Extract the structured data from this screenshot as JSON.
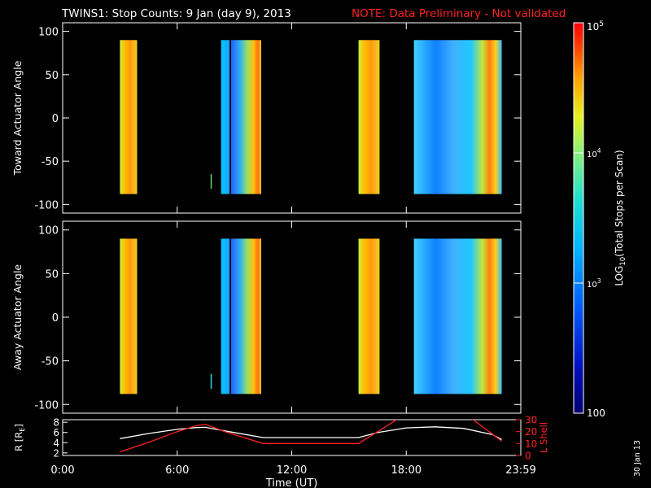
{
  "header": {
    "title": "TWINS1: Stop Counts:  9 Jan (day   9), 2013",
    "note": "NOTE: Data Preliminary - Not validated",
    "note_color": "#ff2020"
  },
  "footer_date": "30 Jan 13",
  "chart_data": [
    {
      "type": "heatmap",
      "ylabel": "Toward Actuator Angle",
      "ylim": [
        -110,
        110
      ],
      "yticks": [
        "100",
        "50",
        "0",
        "-50",
        "-100"
      ],
      "ytick_values": [
        100,
        50,
        0,
        -50,
        -100
      ],
      "xlim": [
        0,
        24
      ],
      "angle_range": [
        -88,
        90
      ],
      "blocks": [
        {
          "t0": 3.0,
          "t1": 3.9,
          "kind": "orange"
        },
        {
          "t0": 7.75,
          "t1": 7.8,
          "kind": "green-line"
        },
        {
          "t0": 8.3,
          "t1": 8.75,
          "kind": "cyan"
        },
        {
          "t0": 8.75,
          "t1": 8.82,
          "kind": "gap"
        },
        {
          "t0": 8.82,
          "t1": 10.4,
          "kind": "blue-to-orange"
        },
        {
          "t0": 15.5,
          "t1": 16.6,
          "kind": "orange"
        },
        {
          "t0": 18.4,
          "t1": 23.0,
          "kind": "cyan-to-red"
        }
      ]
    },
    {
      "type": "heatmap",
      "ylabel": "Away Actuator Angle",
      "ylim": [
        -110,
        110
      ],
      "yticks": [
        "100",
        "50",
        "0",
        "-50",
        "-100"
      ],
      "ytick_values": [
        100,
        50,
        0,
        -50,
        -100
      ],
      "xlim": [
        0,
        24
      ],
      "angle_range": [
        -88,
        90
      ],
      "blocks": [
        {
          "t0": 3.0,
          "t1": 3.9,
          "kind": "orange"
        },
        {
          "t0": 7.75,
          "t1": 7.8,
          "kind": "cyan-line"
        },
        {
          "t0": 8.3,
          "t1": 8.75,
          "kind": "cyan"
        },
        {
          "t0": 8.75,
          "t1": 8.82,
          "kind": "gap"
        },
        {
          "t0": 8.82,
          "t1": 10.4,
          "kind": "blue-to-orange"
        },
        {
          "t0": 15.5,
          "t1": 16.6,
          "kind": "orange"
        },
        {
          "t0": 18.4,
          "t1": 23.0,
          "kind": "cyan-to-red"
        }
      ]
    },
    {
      "type": "line",
      "ylabel_left": "R [R",
      "ylabel_left_sub": "E",
      "ylabel_left_end": "]",
      "ylabel_right": "L Shell",
      "left_ylim": [
        1.5,
        8.5
      ],
      "left_yticks": [
        "8",
        "6",
        "4",
        "2"
      ],
      "left_ytick_values": [
        8,
        6,
        4,
        2
      ],
      "right_ylim": [
        0,
        30
      ],
      "right_yticks": [
        "30",
        "20",
        "10",
        "0"
      ],
      "right_ytick_values": [
        30,
        20,
        10,
        0
      ],
      "series": [
        {
          "axis": "left",
          "color": "#ffffff",
          "x": [
            3.0,
            4.5,
            6.0,
            7.0,
            7.5,
            8.5,
            10.5,
            15.5,
            16.5,
            18.0,
            19.5,
            21.0,
            22.5,
            23.0
          ],
          "y": [
            4.8,
            5.8,
            6.6,
            6.95,
            7.0,
            6.3,
            5.0,
            5.0,
            6.0,
            6.9,
            7.1,
            6.8,
            5.6,
            4.6
          ]
        },
        {
          "axis": "right",
          "color": "#ff2020",
          "x": [
            3.0,
            4.5,
            6.0,
            7.0,
            7.5,
            8.5,
            10.5,
            15.5,
            16.5,
            17.5,
            18.0,
            21.0,
            21.5,
            23.0
          ],
          "y": [
            3,
            11,
            20,
            25,
            26,
            20,
            10,
            10,
            20,
            30,
            36,
            36,
            30,
            12
          ]
        }
      ]
    }
  ],
  "xaxis": {
    "label": "Time (UT)",
    "ticks": [
      "0:00",
      "6:00",
      "12:00",
      "18:00",
      "23:59"
    ],
    "tick_values": [
      0,
      6,
      12,
      18,
      24
    ]
  },
  "colorbar": {
    "label": "LOG10(Total Stops per Scan)",
    "label_pre": "LOG",
    "label_sub": "10",
    "label_post": "(Total Stops per Scan)",
    "top_label_base": "10",
    "top_label_exp": "5",
    "mid1_base": "10",
    "mid1_exp": "4",
    "mid2_base": "10",
    "mid2_exp": "3",
    "bottom_label": "100",
    "scale": "log",
    "range": [
      100,
      100000
    ]
  }
}
